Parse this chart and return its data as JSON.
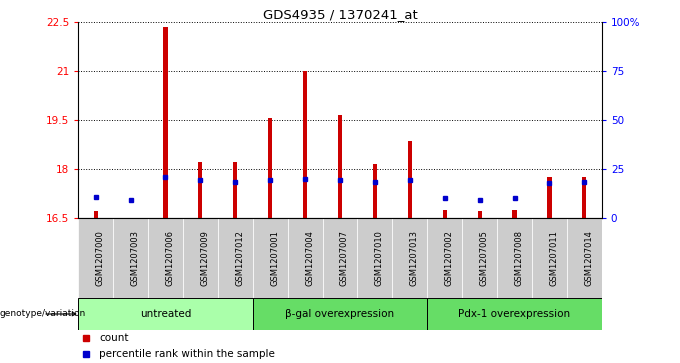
{
  "title": "GDS4935 / 1370241_at",
  "samples": [
    "GSM1207000",
    "GSM1207003",
    "GSM1207006",
    "GSM1207009",
    "GSM1207012",
    "GSM1207001",
    "GSM1207004",
    "GSM1207007",
    "GSM1207010",
    "GSM1207013",
    "GSM1207002",
    "GSM1207005",
    "GSM1207008",
    "GSM1207011",
    "GSM1207014"
  ],
  "count_values": [
    16.7,
    16.4,
    22.35,
    18.2,
    18.2,
    19.55,
    21.0,
    19.65,
    18.15,
    18.85,
    16.75,
    16.7,
    16.75,
    17.75,
    17.75
  ],
  "percentile_values": [
    17.15,
    17.05,
    17.75,
    17.65,
    17.6,
    17.65,
    17.7,
    17.65,
    17.6,
    17.65,
    17.1,
    17.05,
    17.1,
    17.55,
    17.6
  ],
  "ylim_left": [
    16.5,
    22.5
  ],
  "ylim_right": [
    0,
    100
  ],
  "yticks_left": [
    16.5,
    18.0,
    19.5,
    21.0,
    22.5
  ],
  "ytick_labels_left": [
    "16.5",
    "18",
    "19.5",
    "21",
    "22.5"
  ],
  "yticks_right": [
    0,
    25,
    50,
    75,
    100
  ],
  "ytick_labels_right": [
    "0",
    "25",
    "50",
    "75",
    "100%"
  ],
  "groups": [
    {
      "label": "untreated",
      "start": 0,
      "end": 5
    },
    {
      "label": "β-gal overexpression",
      "start": 5,
      "end": 10
    },
    {
      "label": "Pdx-1 overexpression",
      "start": 10,
      "end": 15
    }
  ],
  "group_colors": [
    "#aaffaa",
    "#66dd66",
    "#66dd66"
  ],
  "group_header": "genotype/variation",
  "legend_count_color": "#cc0000",
  "legend_percentile_color": "#0000cc",
  "bar_color": "#cc0000",
  "percentile_color": "#0000cc",
  "xticklabel_bg": "#cccccc",
  "bar_width": 0.12
}
